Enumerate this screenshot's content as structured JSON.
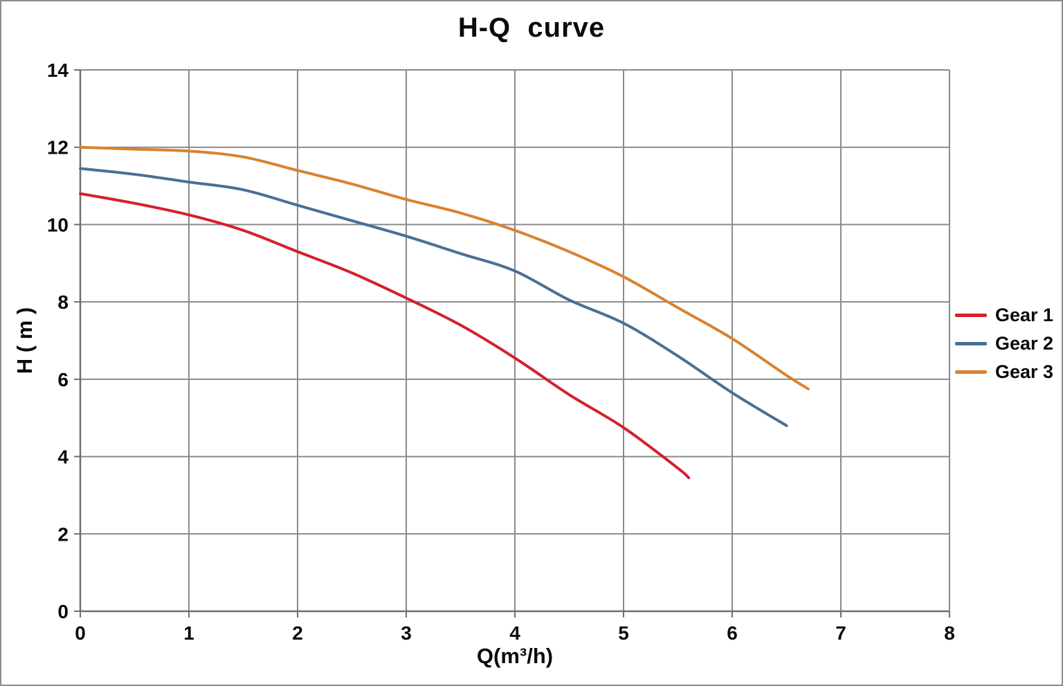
{
  "page": {
    "background": "#ffffff",
    "border_color": "#8d8d8d"
  },
  "chart_data": {
    "type": "line",
    "title": "H-Q  curve",
    "xlabel": "Q(m³/h)",
    "ylabel": "H ( m )",
    "xlim": [
      0,
      8
    ],
    "ylim": [
      0,
      14
    ],
    "x_ticks": [
      0,
      1,
      2,
      3,
      4,
      5,
      6,
      7,
      8
    ],
    "y_ticks": [
      0,
      2,
      4,
      6,
      8,
      10,
      12,
      14
    ],
    "grid": true,
    "grid_color": "#8a8a8a",
    "axis_color": "#6e6e6e",
    "text_color": "#0b0b0b",
    "legend_position": "right-outside",
    "line_width": 4,
    "series": [
      {
        "name": "Gear 1",
        "color": "#d4202b",
        "points": [
          [
            0,
            10.8
          ],
          [
            0.5,
            10.55
          ],
          [
            1,
            10.25
          ],
          [
            1.5,
            9.85
          ],
          [
            2,
            9.3
          ],
          [
            2.5,
            8.75
          ],
          [
            3,
            8.1
          ],
          [
            3.5,
            7.4
          ],
          [
            4,
            6.55
          ],
          [
            4.5,
            5.6
          ],
          [
            5,
            4.75
          ],
          [
            5.5,
            3.7
          ],
          [
            5.6,
            3.45
          ]
        ]
      },
      {
        "name": "Gear 2",
        "color": "#4a6f94",
        "points": [
          [
            0,
            11.45
          ],
          [
            0.5,
            11.3
          ],
          [
            1,
            11.1
          ],
          [
            1.5,
            10.9
          ],
          [
            2,
            10.5
          ],
          [
            2.5,
            10.1
          ],
          [
            3,
            9.7
          ],
          [
            3.5,
            9.25
          ],
          [
            4,
            8.8
          ],
          [
            4.5,
            8.05
          ],
          [
            5,
            7.45
          ],
          [
            5.5,
            6.6
          ],
          [
            6,
            5.65
          ],
          [
            6.5,
            4.8
          ]
        ]
      },
      {
        "name": "Gear 3",
        "color": "#da812f",
        "points": [
          [
            0,
            12.0
          ],
          [
            0.5,
            11.95
          ],
          [
            1,
            11.9
          ],
          [
            1.5,
            11.75
          ],
          [
            2,
            11.4
          ],
          [
            2.5,
            11.05
          ],
          [
            3,
            10.65
          ],
          [
            3.5,
            10.3
          ],
          [
            4,
            9.85
          ],
          [
            4.5,
            9.3
          ],
          [
            5,
            8.65
          ],
          [
            5.5,
            7.85
          ],
          [
            6,
            7.05
          ],
          [
            6.5,
            6.1
          ],
          [
            6.7,
            5.75
          ]
        ]
      }
    ]
  }
}
